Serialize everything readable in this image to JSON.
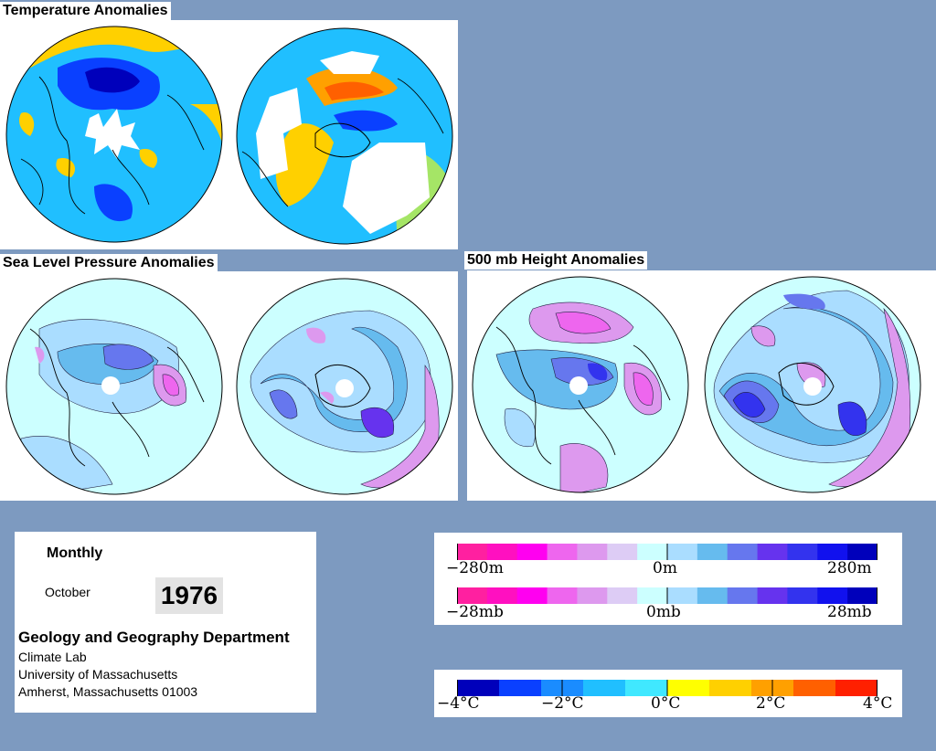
{
  "titles": {
    "temperature": "Temperature Anomalies",
    "slp": "Sea Level Pressure Anomalies",
    "height": "500 mb Height Anomalies"
  },
  "info": {
    "period_type": "Monthly",
    "month": "October",
    "year": "1976",
    "department": "Geology and Geography Department",
    "lab": "Climate Lab",
    "university": "University of Massachusetts",
    "address": "Amherst, Massachusetts 01003"
  },
  "legends": {
    "height": {
      "left": "−280m",
      "center": "0m",
      "right": "280m"
    },
    "pressure": {
      "left": "−28mb",
      "center": "0mb",
      "right": "28mb"
    },
    "temperature": {
      "ticks": [
        "−4°C",
        "−2°C",
        "0°C",
        "2°C",
        "4°C"
      ]
    }
  },
  "colors": {
    "background": "#7d9ac0",
    "anomaly_scale": [
      "#ff20a0",
      "#ff10c0",
      "#ff00f0",
      "#ee66ee",
      "#dd99ee",
      "#ddccf5",
      "#ccffff",
      "#aaddff",
      "#66bbee",
      "#6677ee",
      "#6633ee",
      "#3333ee",
      "#1111ee",
      "#0000bb"
    ],
    "temperature_scale": [
      "#0000bb",
      "#0a40ff",
      "#1a8cff",
      "#20bfff",
      "#40e8ff",
      "#ffff00",
      "#ffd000",
      "#ffa000",
      "#ff6000",
      "#ff2000"
    ]
  }
}
